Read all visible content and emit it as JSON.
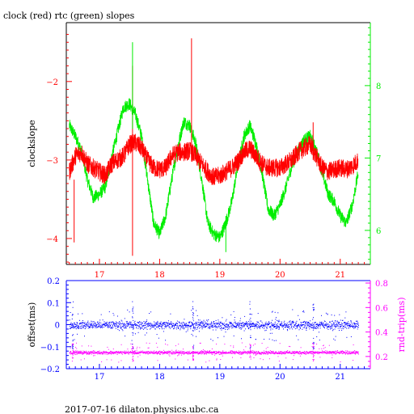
{
  "title": "clock (red) rtc (green) slopes",
  "footer": "2017-07-16 dilaton.physics.ubc.ca",
  "colors": {
    "clock": "#ff0000",
    "rtc": "#00ee00",
    "offset": "#0000ff",
    "rndtrip": "#ff00ff",
    "axis": "#000000"
  },
  "chart_data": [
    {
      "type": "line",
      "title": "clock (red) rtc (green) slopes",
      "xlabel": "",
      "ylabel": "clockslope",
      "y2label": "",
      "xlim": [
        16.45,
        21.5
      ],
      "ylim": [
        -4.33,
        -1.25
      ],
      "y2lim": [
        5.53,
        8.87
      ],
      "xticks": [
        17,
        18,
        19,
        20,
        21
      ],
      "yticks": [
        -2,
        -3,
        -4
      ],
      "y2ticks": [
        8,
        7,
        6
      ],
      "series": [
        {
          "name": "clock",
          "axis": "left",
          "x": [
            16.5,
            16.6,
            16.7,
            16.8,
            16.9,
            17.0,
            17.1,
            17.2,
            17.3,
            17.4,
            17.5,
            17.6,
            17.7,
            17.8,
            17.9,
            18.0,
            18.1,
            18.2,
            18.3,
            18.4,
            18.5,
            18.6,
            18.7,
            18.8,
            18.9,
            19.0,
            19.1,
            19.2,
            19.3,
            19.4,
            19.5,
            19.6,
            19.7,
            19.8,
            19.9,
            20.0,
            20.1,
            20.2,
            20.3,
            20.4,
            20.5,
            20.6,
            20.7,
            20.8,
            20.9,
            21.0,
            21.1,
            21.2,
            21.3
          ],
          "y": [
            -3.15,
            -2.95,
            -2.9,
            -3.05,
            -3.1,
            -3.15,
            -3.2,
            -3.05,
            -3.0,
            -2.95,
            -2.8,
            -2.78,
            -2.85,
            -3.0,
            -3.1,
            -3.12,
            -3.1,
            -2.95,
            -2.9,
            -2.9,
            -2.88,
            -2.95,
            -3.05,
            -3.15,
            -3.22,
            -3.2,
            -3.15,
            -3.1,
            -3.02,
            -2.9,
            -2.85,
            -2.95,
            -3.05,
            -3.1,
            -3.1,
            -3.1,
            -3.05,
            -3.0,
            -2.9,
            -2.85,
            -2.8,
            -2.95,
            -3.1,
            -3.15,
            -3.12,
            -3.1,
            -3.12,
            -3.08,
            -3.0
          ]
        },
        {
          "name": "rtc",
          "axis": "right",
          "x": [
            16.5,
            16.6,
            16.7,
            16.8,
            16.9,
            17.0,
            17.1,
            17.2,
            17.3,
            17.4,
            17.5,
            17.6,
            17.7,
            17.8,
            17.9,
            18.0,
            18.1,
            18.2,
            18.3,
            18.4,
            18.5,
            18.6,
            18.7,
            18.8,
            18.9,
            19.0,
            19.1,
            19.2,
            19.3,
            19.4,
            19.5,
            19.6,
            19.7,
            19.8,
            19.9,
            20.0,
            20.1,
            20.2,
            20.3,
            20.4,
            20.5,
            20.6,
            20.7,
            20.8,
            20.9,
            21.0,
            21.1,
            21.2,
            21.3
          ],
          "y": [
            7.45,
            7.3,
            7.1,
            6.7,
            6.45,
            6.5,
            6.6,
            7.0,
            7.35,
            7.7,
            7.75,
            7.6,
            7.3,
            6.7,
            6.1,
            5.95,
            6.2,
            6.7,
            7.15,
            7.5,
            7.45,
            7.2,
            6.7,
            6.1,
            5.95,
            5.9,
            6.1,
            6.4,
            6.9,
            7.3,
            7.45,
            7.2,
            6.8,
            6.3,
            6.2,
            6.35,
            6.6,
            6.9,
            7.1,
            7.25,
            7.3,
            7.1,
            6.8,
            6.5,
            6.4,
            6.2,
            6.1,
            6.35,
            6.8
          ]
        }
      ],
      "spikes": [
        {
          "series": "clock",
          "x": 16.58,
          "low": -4.05,
          "high": -3.25
        },
        {
          "series": "clock",
          "x": 17.55,
          "low": -4.22,
          "high": -1.8
        },
        {
          "series": "clock",
          "x": 18.53,
          "low": -3.0,
          "high": -1.45
        },
        {
          "series": "clock",
          "x": 20.55,
          "low": -3.0,
          "high": -2.52
        },
        {
          "series": "rtc",
          "x": 17.55,
          "low": 7.4,
          "high": 8.6
        },
        {
          "series": "rtc",
          "x": 19.1,
          "low": 5.7,
          "high": 6.2
        }
      ]
    },
    {
      "type": "scatter",
      "xlabel": "",
      "ylabel": "offset(ms)",
      "y2label": "rnd-trip(ms)",
      "xlim": [
        16.45,
        21.5
      ],
      "ylim": [
        -0.2,
        0.2
      ],
      "y2lim": [
        0.1,
        0.82
      ],
      "xticks": [
        17,
        18,
        19,
        20,
        21
      ],
      "yticks": [
        0.2,
        0.1,
        0,
        -0.1,
        -0.2
      ],
      "y2ticks": [
        0.8,
        0.6,
        0.4,
        0.2
      ],
      "series": [
        {
          "name": "offset",
          "axis": "left",
          "center": 0.0,
          "spread": 0.012
        },
        {
          "name": "rnd-trip",
          "axis": "right",
          "center": 0.235,
          "spread": 0.008
        }
      ]
    }
  ]
}
